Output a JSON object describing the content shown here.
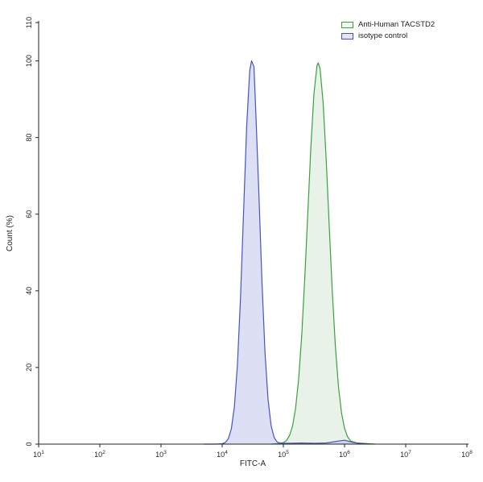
{
  "chart_data": {
    "type": "area",
    "subtype": "flow-cytometry-histogram-overlay",
    "title": "",
    "xlabel": "FITC-A",
    "ylabel": "Count  (%)",
    "x_scale": "log10",
    "x_tick_base": "10",
    "x_tick_exponents": [
      1,
      2,
      3,
      4,
      5,
      6,
      7,
      8
    ],
    "xlim_log10": [
      1,
      8
    ],
    "ylim": [
      0,
      110
    ],
    "y_ticks": [
      0,
      20,
      40,
      60,
      80,
      100,
      110
    ],
    "grid": false,
    "legend_position": "top-right",
    "series": [
      {
        "name": "Anti-Human TACSTD2",
        "stroke": "#3aa23a",
        "fill": "rgba(110,175,110,0.16)",
        "peak": {
          "x_log10": 5.57,
          "x_value": 370000,
          "y_percent": 99.5
        },
        "points_log10x_y": [
          [
            4.8,
            0
          ],
          [
            4.9,
            0.1
          ],
          [
            5.0,
            0.4
          ],
          [
            5.05,
            0.9
          ],
          [
            5.1,
            2.2
          ],
          [
            5.15,
            4.7
          ],
          [
            5.2,
            9.4
          ],
          [
            5.25,
            17.0
          ],
          [
            5.3,
            28.3
          ],
          [
            5.35,
            43.3
          ],
          [
            5.4,
            60.4
          ],
          [
            5.45,
            77.6
          ],
          [
            5.5,
            91.4
          ],
          [
            5.55,
            98.8
          ],
          [
            5.57,
            99.5
          ],
          [
            5.6,
            98.0
          ],
          [
            5.65,
            89.1
          ],
          [
            5.7,
            74.3
          ],
          [
            5.75,
            56.8
          ],
          [
            5.8,
            39.8
          ],
          [
            5.85,
            25.6
          ],
          [
            5.9,
            15.1
          ],
          [
            5.95,
            8.2
          ],
          [
            6.0,
            4.1
          ],
          [
            6.05,
            1.9
          ],
          [
            6.1,
            0.8
          ],
          [
            6.2,
            0.3
          ],
          [
            6.3,
            0.2
          ],
          [
            6.4,
            0.1
          ],
          [
            6.5,
            0
          ]
        ]
      },
      {
        "name": "isotype control",
        "stroke": "#4553c8",
        "fill": "rgba(120,130,215,0.25)",
        "peak": {
          "x_log10": 4.48,
          "x_value": 30000,
          "y_percent": 100
        },
        "points_log10x_y": [
          [
            3.7,
            0
          ],
          [
            3.9,
            0
          ],
          [
            4.0,
            0.1
          ],
          [
            4.05,
            0.4
          ],
          [
            4.1,
            1.4
          ],
          [
            4.15,
            4.0
          ],
          [
            4.2,
            9.8
          ],
          [
            4.25,
            20.9
          ],
          [
            4.3,
            38.3
          ],
          [
            4.35,
            60.7
          ],
          [
            4.4,
            82.8
          ],
          [
            4.45,
            97.4
          ],
          [
            4.48,
            100
          ],
          [
            4.52,
            98.5
          ],
          [
            4.55,
            86.5
          ],
          [
            4.6,
            65.3
          ],
          [
            4.65,
            42.5
          ],
          [
            4.7,
            23.9
          ],
          [
            4.75,
            11.6
          ],
          [
            4.8,
            4.8
          ],
          [
            4.85,
            1.7
          ],
          [
            4.9,
            0.5
          ],
          [
            4.95,
            0.3
          ],
          [
            5.0,
            0.2
          ],
          [
            5.1,
            0.2
          ],
          [
            5.3,
            0.3
          ],
          [
            5.5,
            0.2
          ],
          [
            5.7,
            0.3
          ],
          [
            5.9,
            0.8
          ],
          [
            6.0,
            1.0
          ],
          [
            6.1,
            0.6
          ],
          [
            6.2,
            0.3
          ],
          [
            6.3,
            0.1
          ],
          [
            6.4,
            0
          ]
        ]
      }
    ]
  },
  "legend": {
    "items": [
      {
        "label": "Anti-Human TACSTD2",
        "color": "#3aa23a",
        "fill": "#f3f9f3"
      },
      {
        "label": "isotype control",
        "color": "#4553c8",
        "fill": "#e2e5f8"
      }
    ]
  }
}
